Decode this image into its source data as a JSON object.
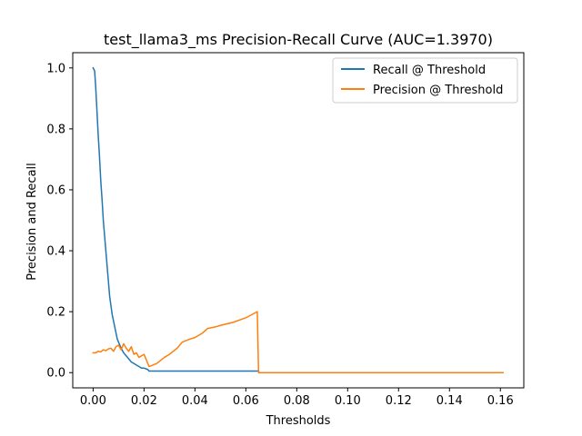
{
  "chart_data": {
    "type": "line",
    "title": "test_llama3_ms Precision-Recall Curve (AUC=1.3970)",
    "xlabel": "Thresholds",
    "ylabel": "Precision and Recall",
    "xlim": [
      -0.008,
      0.1692
    ],
    "ylim": [
      -0.05,
      1.05
    ],
    "xticks": [
      0.0,
      0.02,
      0.04,
      0.06,
      0.08,
      0.1,
      0.12,
      0.14,
      0.16
    ],
    "xtick_labels": [
      "0.00",
      "0.02",
      "0.04",
      "0.06",
      "0.08",
      "0.10",
      "0.12",
      "0.14",
      "0.16"
    ],
    "yticks": [
      0.0,
      0.2,
      0.4,
      0.6,
      0.8,
      1.0
    ],
    "ytick_labels": [
      "0.0",
      "0.2",
      "0.4",
      "0.6",
      "0.8",
      "1.0"
    ],
    "grid": false,
    "legend_position": "top-right",
    "series": [
      {
        "name": "Recall @ Threshold",
        "color": "#1f77b4",
        "x": [
          0.0,
          0.0006,
          0.001,
          0.0015,
          0.002,
          0.0025,
          0.003,
          0.0035,
          0.004,
          0.0045,
          0.005,
          0.0055,
          0.006,
          0.0065,
          0.007,
          0.0075,
          0.008,
          0.0085,
          0.009,
          0.0095,
          0.01,
          0.011,
          0.012,
          0.013,
          0.014,
          0.015,
          0.016,
          0.017,
          0.018,
          0.019,
          0.02,
          0.0215,
          0.022,
          0.03,
          0.04,
          0.05,
          0.06,
          0.065,
          0.0651,
          0.08,
          0.1,
          0.12,
          0.14,
          0.161
        ],
        "y": [
          1.0,
          0.99,
          0.94,
          0.86,
          0.78,
          0.71,
          0.63,
          0.57,
          0.5,
          0.45,
          0.4,
          0.35,
          0.3,
          0.25,
          0.22,
          0.19,
          0.17,
          0.15,
          0.13,
          0.11,
          0.1,
          0.08,
          0.065,
          0.055,
          0.045,
          0.035,
          0.03,
          0.025,
          0.02,
          0.015,
          0.015,
          0.01,
          0.005,
          0.005,
          0.005,
          0.005,
          0.005,
          0.005,
          0.0,
          0.0,
          0.0,
          0.0,
          0.0,
          0.0
        ]
      },
      {
        "name": "Precision @ Threshold",
        "color": "#ff7f0e",
        "x": [
          0.0,
          0.001,
          0.002,
          0.003,
          0.004,
          0.005,
          0.006,
          0.007,
          0.008,
          0.009,
          0.01,
          0.011,
          0.012,
          0.013,
          0.014,
          0.015,
          0.016,
          0.017,
          0.018,
          0.019,
          0.02,
          0.021,
          0.022,
          0.025,
          0.028,
          0.03,
          0.033,
          0.035,
          0.038,
          0.04,
          0.043,
          0.045,
          0.048,
          0.05,
          0.055,
          0.06,
          0.0645,
          0.065,
          0.08,
          0.1,
          0.12,
          0.14,
          0.161
        ],
        "y": [
          0.065,
          0.065,
          0.07,
          0.068,
          0.075,
          0.072,
          0.078,
          0.08,
          0.07,
          0.085,
          0.09,
          0.075,
          0.095,
          0.08,
          0.07,
          0.085,
          0.06,
          0.065,
          0.05,
          0.055,
          0.06,
          0.04,
          0.02,
          0.03,
          0.05,
          0.06,
          0.08,
          0.1,
          0.11,
          0.115,
          0.13,
          0.145,
          0.15,
          0.155,
          0.165,
          0.18,
          0.2,
          0.0,
          0.0,
          0.0,
          0.0,
          0.0,
          0.0
        ]
      }
    ]
  }
}
